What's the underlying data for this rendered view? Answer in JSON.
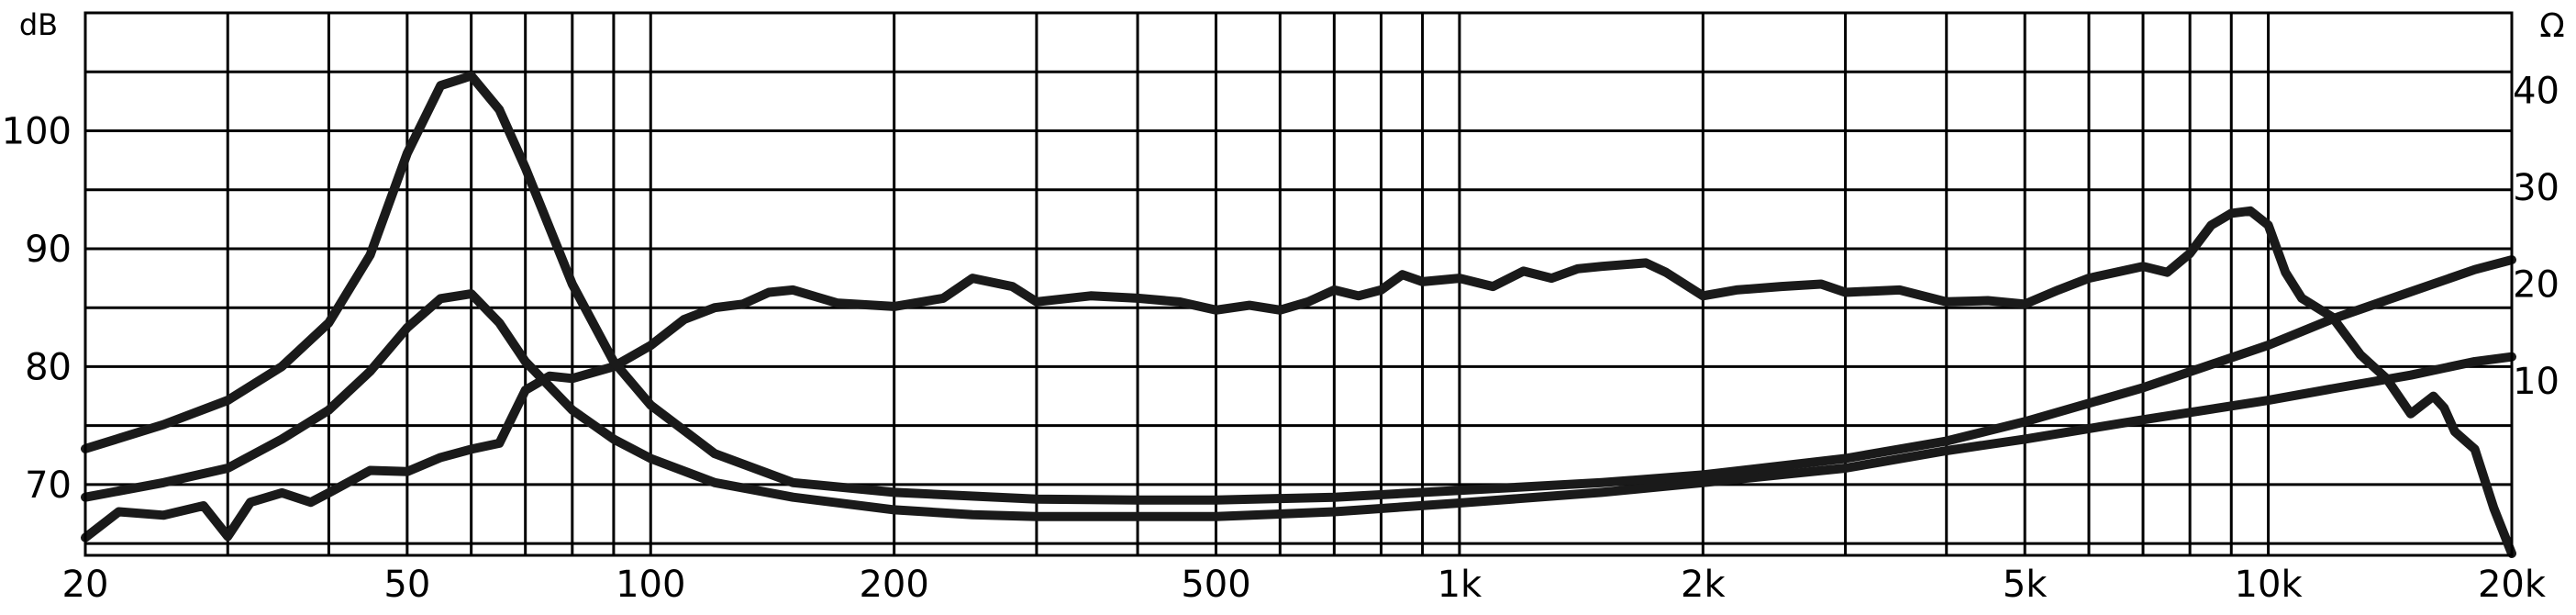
{
  "chart_data": {
    "type": "line",
    "title": "",
    "x_scale": "log",
    "xlim": [
      20,
      20000
    ],
    "ylim_left": [
      64,
      110
    ],
    "ylim_right": [
      -8,
      48
    ],
    "left_unit": "dB",
    "right_unit": "Ω",
    "x_ticks": [
      {
        "value": 20,
        "label": "20"
      },
      {
        "value": 50,
        "label": "50"
      },
      {
        "value": 100,
        "label": "100"
      },
      {
        "value": 200,
        "label": "200"
      },
      {
        "value": 500,
        "label": "500"
      },
      {
        "value": 1000,
        "label": "1k"
      },
      {
        "value": 2000,
        "label": "2k"
      },
      {
        "value": 5000,
        "label": "5k"
      },
      {
        "value": 10000,
        "label": "10k"
      },
      {
        "value": 20000,
        "label": "20k"
      }
    ],
    "y_ticks_left": [
      {
        "value": 70,
        "label": "70"
      },
      {
        "value": 80,
        "label": "80"
      },
      {
        "value": 90,
        "label": "90"
      },
      {
        "value": 100,
        "label": "100"
      }
    ],
    "y_ticks_right": [
      {
        "value": 10,
        "label": "10"
      },
      {
        "value": 20,
        "label": "20"
      },
      {
        "value": 30,
        "label": "30"
      },
      {
        "value": 40,
        "label": "40"
      }
    ],
    "grid": true,
    "series": [
      {
        "axis": "left",
        "x": [
          20,
          22,
          25,
          28,
          30,
          32,
          35,
          38,
          40,
          45,
          50,
          55,
          60,
          65,
          70,
          75,
          80,
          90,
          100,
          110,
          120,
          130,
          140,
          150,
          170,
          200,
          230,
          250,
          280,
          300,
          350,
          400,
          450,
          500,
          550,
          600,
          650,
          700,
          750,
          800,
          850,
          900,
          1000,
          1100,
          1200,
          1300,
          1400,
          1500,
          1700,
          1800,
          2000,
          2200,
          2500,
          2800,
          3000,
          3500,
          4000,
          4500,
          5000,
          5500,
          6000,
          7000,
          7500,
          8000,
          8500,
          9000,
          9500,
          10000,
          10500,
          11000,
          12000,
          13000,
          14000,
          15000,
          16000,
          16500,
          17000,
          18000,
          19000,
          20000
        ],
        "values": [
          65.5,
          67.7,
          67.4,
          68.2,
          65.6,
          68.5,
          69.3,
          68.5,
          69.3,
          71.2,
          71.1,
          72.3,
          73.0,
          73.5,
          78.0,
          79.2,
          79.0,
          80.0,
          81.8,
          84.0,
          85.0,
          85.3,
          86.3,
          86.5,
          85.4,
          85.1,
          85.8,
          87.5,
          86.8,
          85.5,
          86.0,
          85.8,
          85.5,
          84.8,
          85.2,
          84.8,
          85.5,
          86.5,
          86.0,
          86.5,
          87.8,
          87.2,
          87.5,
          86.8,
          88.1,
          87.5,
          88.3,
          88.5,
          88.8,
          88.0,
          86.0,
          86.5,
          86.8,
          87.0,
          86.3,
          86.5,
          85.5,
          85.6,
          85.3,
          86.5,
          87.5,
          88.5,
          88.0,
          89.6,
          92.0,
          93.0,
          93.2,
          92.0,
          88.0,
          85.8,
          84.2,
          81.0,
          79.0,
          76.0,
          77.5,
          76.5,
          74.5,
          73.0,
          68.0,
          63.0
        ]
      },
      {
        "axis": "right",
        "x": [
          20,
          25,
          30,
          35,
          40,
          45,
          50,
          55,
          60,
          65,
          70,
          80,
          90,
          100,
          120,
          150,
          200,
          250,
          300,
          400,
          500,
          700,
          1000,
          1500,
          2000,
          3000,
          4000,
          5000,
          7000,
          10000,
          12000,
          15000,
          18000,
          20000
        ],
        "values": [
          -2.0,
          -0.5,
          1.0,
          4.0,
          7.0,
          11.0,
          15.5,
          18.5,
          19.0,
          16.0,
          12.0,
          7.0,
          4.0,
          2.0,
          -0.5,
          -2.0,
          -3.3,
          -3.8,
          -4.0,
          -4.0,
          -4.0,
          -3.5,
          -2.6,
          -1.5,
          -0.5,
          1.0,
          2.8,
          4.0,
          6.0,
          8.0,
          9.2,
          10.6,
          12.0,
          12.5
        ]
      },
      {
        "axis": "right",
        "x": [
          20,
          25,
          30,
          35,
          40,
          45,
          50,
          55,
          60,
          65,
          70,
          80,
          90,
          100,
          120,
          150,
          200,
          300,
          400,
          500,
          700,
          1000,
          1500,
          2000,
          3000,
          4000,
          5000,
          7000,
          10000,
          12000,
          15000,
          18000,
          20000
        ],
        "values": [
          3.0,
          5.5,
          8.0,
          11.5,
          16.0,
          23.0,
          33.5,
          40.5,
          41.5,
          38.0,
          32.0,
          20.0,
          12.0,
          7.5,
          2.5,
          -0.5,
          -1.5,
          -2.2,
          -2.3,
          -2.3,
          -2.0,
          -1.3,
          -0.5,
          0.3,
          2.0,
          3.8,
          5.8,
          9.3,
          13.7,
          16.4,
          19.2,
          21.5,
          22.5
        ]
      }
    ]
  }
}
